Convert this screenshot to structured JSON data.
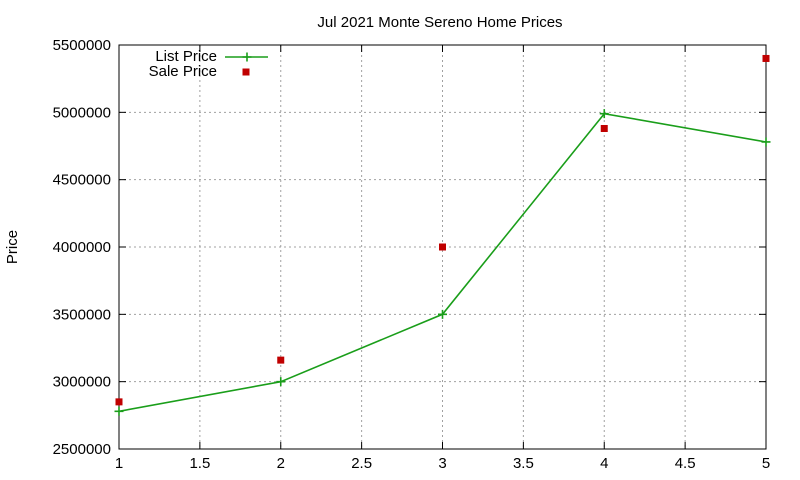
{
  "chart_data": {
    "type": "line",
    "title": "Jul 2021 Monte Sereno Home Prices",
    "xlabel": "",
    "ylabel": "Price",
    "xlim": [
      1,
      5
    ],
    "ylim": [
      2500000,
      5500000
    ],
    "xticks": [
      1,
      1.5,
      2,
      2.5,
      3,
      3.5,
      4,
      4.5,
      5
    ],
    "xtick_labels": [
      "1",
      "1.5",
      "2",
      "2.5",
      "3",
      "3.5",
      "4",
      "4.5",
      "5"
    ],
    "yticks": [
      2500000,
      3000000,
      3500000,
      4000000,
      4500000,
      5000000,
      5500000
    ],
    "ytick_labels": [
      "2500000",
      "3000000",
      "3500000",
      "4000000",
      "4500000",
      "5000000",
      "5500000"
    ],
    "grid": true,
    "legend_position": "top-left",
    "series": [
      {
        "name": "List Price",
        "style": "line+cross",
        "color": "#1a9e1a",
        "x": [
          1,
          2,
          3,
          4,
          5
        ],
        "values": [
          2780000,
          3000000,
          3500000,
          4990000,
          4780000
        ]
      },
      {
        "name": "Sale Price",
        "style": "square-points",
        "color": "#c00000",
        "x": [
          1,
          2,
          3,
          4,
          5
        ],
        "values": [
          2850000,
          3160000,
          4000000,
          4880000,
          5400000
        ]
      }
    ]
  }
}
